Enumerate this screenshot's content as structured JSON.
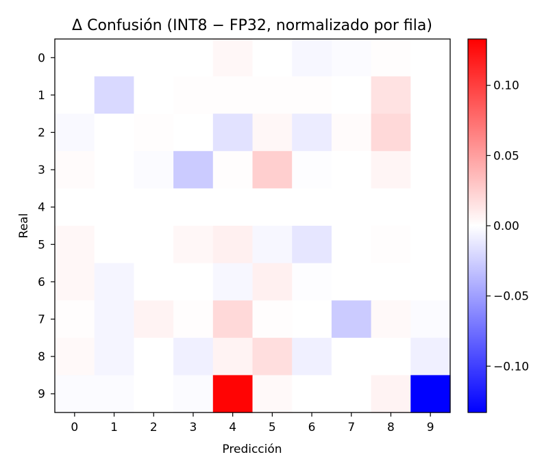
{
  "chart_data": {
    "type": "heatmap",
    "title": "Δ Confusión (INT8 − FP32, normalizado por fila)",
    "xlabel": "Predicción",
    "ylabel": "Real",
    "x_ticks": [
      "0",
      "1",
      "2",
      "3",
      "4",
      "5",
      "6",
      "7",
      "8",
      "9"
    ],
    "y_ticks": [
      "0",
      "1",
      "2",
      "3",
      "4",
      "5",
      "6",
      "7",
      "8",
      "9"
    ],
    "colormap": "bwr",
    "vmin": -0.133,
    "vmax": 0.133,
    "colorbar_ticks": [
      0.1,
      0.05,
      0.0,
      -0.05,
      -0.1
    ],
    "colorbar_tick_labels": [
      "0.10",
      "0.05",
      "0.00",
      "−0.05",
      "−0.10"
    ],
    "values": [
      [
        0.0,
        0.0,
        0.0,
        0.0,
        0.004,
        0.0,
        -0.004,
        -0.002,
        0.001,
        0.0
      ],
      [
        0.0,
        -0.02,
        0.0,
        0.001,
        0.001,
        0.001,
        0.001,
        0.0,
        0.015,
        0.0
      ],
      [
        -0.003,
        0.0,
        0.001,
        0.0,
        -0.015,
        0.004,
        -0.01,
        0.002,
        0.02,
        0.0
      ],
      [
        0.002,
        0.0,
        -0.002,
        -0.027,
        0.001,
        0.025,
        -0.001,
        0.0,
        0.005,
        0.0
      ],
      [
        0.0,
        0.0,
        0.0,
        0.0,
        0.0,
        0.0,
        0.0,
        0.0,
        0.0,
        0.0
      ],
      [
        0.004,
        0.0,
        0.0,
        0.004,
        0.008,
        -0.004,
        -0.013,
        0.0,
        0.001,
        0.0
      ],
      [
        0.004,
        -0.005,
        0.0,
        0.0,
        -0.004,
        0.008,
        -0.001,
        0.0,
        0.0,
        0.0
      ],
      [
        0.001,
        -0.005,
        0.006,
        0.001,
        0.02,
        0.001,
        0.0,
        -0.027,
        0.003,
        -0.002
      ],
      [
        0.003,
        -0.005,
        0.0,
        -0.008,
        0.006,
        0.017,
        -0.008,
        0.0,
        0.0,
        -0.008
      ],
      [
        -0.002,
        -0.002,
        0.0,
        -0.002,
        0.131,
        0.003,
        0.0,
        0.0,
        0.006,
        -0.133
      ]
    ]
  }
}
